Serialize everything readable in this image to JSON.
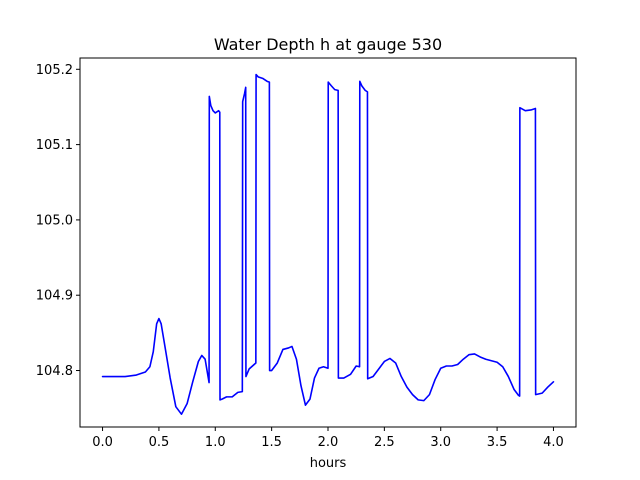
{
  "chart_data": {
    "type": "line",
    "title": "Water Depth h at gauge 530",
    "xlabel": "hours",
    "ylabel": "",
    "xlim": [
      -0.2,
      4.2
    ],
    "ylim": [
      104.725,
      105.215
    ],
    "x_ticks": [
      0.0,
      0.5,
      1.0,
      1.5,
      2.0,
      2.5,
      3.0,
      3.5,
      4.0
    ],
    "x_tick_labels": [
      "0.0",
      "0.5",
      "1.0",
      "1.5",
      "2.0",
      "2.5",
      "3.0",
      "3.5",
      "4.0"
    ],
    "y_ticks": [
      104.8,
      104.9,
      105.0,
      105.1,
      105.2
    ],
    "y_tick_labels": [
      "104.8",
      "104.9",
      "105.0",
      "105.1",
      "105.2"
    ],
    "grid": false,
    "legend": "none",
    "series": [
      {
        "color": "#0000ff",
        "points": [
          [
            0.0,
            104.792
          ],
          [
            0.2,
            104.792
          ],
          [
            0.3,
            104.794
          ],
          [
            0.38,
            104.798
          ],
          [
            0.42,
            104.805
          ],
          [
            0.45,
            104.825
          ],
          [
            0.48,
            104.862
          ],
          [
            0.5,
            104.869
          ],
          [
            0.52,
            104.862
          ],
          [
            0.55,
            104.835
          ],
          [
            0.6,
            104.79
          ],
          [
            0.65,
            104.752
          ],
          [
            0.7,
            104.742
          ],
          [
            0.75,
            104.756
          ],
          [
            0.8,
            104.785
          ],
          [
            0.85,
            104.812
          ],
          [
            0.88,
            104.82
          ],
          [
            0.91,
            104.815
          ],
          [
            0.945,
            104.784
          ],
          [
            0.947,
            105.164
          ],
          [
            0.96,
            105.152
          ],
          [
            0.98,
            105.145
          ],
          [
            1.0,
            105.142
          ],
          [
            1.03,
            105.145
          ],
          [
            1.04,
            105.143
          ],
          [
            1.042,
            104.761
          ],
          [
            1.06,
            104.762
          ],
          [
            1.1,
            104.765
          ],
          [
            1.15,
            104.765
          ],
          [
            1.2,
            104.771
          ],
          [
            1.24,
            104.772
          ],
          [
            1.243,
            105.157
          ],
          [
            1.26,
            105.168
          ],
          [
            1.27,
            105.176
          ],
          [
            1.272,
            104.792
          ],
          [
            1.3,
            104.802
          ],
          [
            1.36,
            104.81
          ],
          [
            1.362,
            105.193
          ],
          [
            1.38,
            105.19
          ],
          [
            1.42,
            105.188
          ],
          [
            1.46,
            105.184
          ],
          [
            1.48,
            105.183
          ],
          [
            1.482,
            104.8
          ],
          [
            1.5,
            104.8
          ],
          [
            1.55,
            104.81
          ],
          [
            1.6,
            104.828
          ],
          [
            1.65,
            104.83
          ],
          [
            1.68,
            104.832
          ],
          [
            1.72,
            104.815
          ],
          [
            1.76,
            104.78
          ],
          [
            1.8,
            104.754
          ],
          [
            1.84,
            104.762
          ],
          [
            1.88,
            104.79
          ],
          [
            1.92,
            104.803
          ],
          [
            1.96,
            104.805
          ],
          [
            2.0,
            104.803
          ],
          [
            2.002,
            105.183
          ],
          [
            2.03,
            105.178
          ],
          [
            2.06,
            105.173
          ],
          [
            2.09,
            105.172
          ],
          [
            2.092,
            104.79
          ],
          [
            2.14,
            104.79
          ],
          [
            2.2,
            104.795
          ],
          [
            2.25,
            104.806
          ],
          [
            2.28,
            104.805
          ],
          [
            2.282,
            105.184
          ],
          [
            2.3,
            105.178
          ],
          [
            2.33,
            105.172
          ],
          [
            2.35,
            105.17
          ],
          [
            2.352,
            104.789
          ],
          [
            2.4,
            104.792
          ],
          [
            2.45,
            104.802
          ],
          [
            2.5,
            104.812
          ],
          [
            2.55,
            104.816
          ],
          [
            2.6,
            104.81
          ],
          [
            2.65,
            104.792
          ],
          [
            2.7,
            104.778
          ],
          [
            2.75,
            104.768
          ],
          [
            2.8,
            104.761
          ],
          [
            2.85,
            104.76
          ],
          [
            2.9,
            104.768
          ],
          [
            2.95,
            104.788
          ],
          [
            3.0,
            104.803
          ],
          [
            3.05,
            104.806
          ],
          [
            3.1,
            104.806
          ],
          [
            3.15,
            104.808
          ],
          [
            3.2,
            104.815
          ],
          [
            3.25,
            104.821
          ],
          [
            3.3,
            104.822
          ],
          [
            3.35,
            104.818
          ],
          [
            3.4,
            104.815
          ],
          [
            3.45,
            104.813
          ],
          [
            3.5,
            104.811
          ],
          [
            3.55,
            104.805
          ],
          [
            3.6,
            104.792
          ],
          [
            3.65,
            104.775
          ],
          [
            3.69,
            104.767
          ],
          [
            3.7,
            104.766
          ],
          [
            3.702,
            105.149
          ],
          [
            3.75,
            105.145
          ],
          [
            3.8,
            105.146
          ],
          [
            3.84,
            105.148
          ],
          [
            3.842,
            104.768
          ],
          [
            3.9,
            104.77
          ],
          [
            3.95,
            104.778
          ],
          [
            4.0,
            104.785
          ]
        ]
      }
    ]
  }
}
